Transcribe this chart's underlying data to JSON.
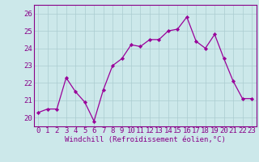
{
  "x": [
    0,
    1,
    2,
    3,
    4,
    5,
    6,
    7,
    8,
    9,
    10,
    11,
    12,
    13,
    14,
    15,
    16,
    17,
    18,
    19,
    20,
    21,
    22,
    23
  ],
  "y": [
    20.3,
    20.5,
    20.5,
    22.3,
    21.5,
    20.9,
    19.8,
    21.6,
    23.0,
    23.4,
    24.2,
    24.1,
    24.5,
    24.5,
    25.0,
    25.1,
    25.8,
    24.4,
    24.0,
    24.8,
    23.4,
    22.1,
    21.1,
    21.1
  ],
  "line_color": "#990099",
  "marker_color": "#990099",
  "bg_color": "#cce8ea",
  "grid_color": "#aaccd0",
  "ylim": [
    19.5,
    26.5
  ],
  "yticks": [
    20,
    21,
    22,
    23,
    24,
    25,
    26
  ],
  "xlabel": "Windchill (Refroidissement éolien,°C)",
  "xlabel_fontsize": 6.5,
  "tick_fontsize": 6.5,
  "border_color": "#880088"
}
